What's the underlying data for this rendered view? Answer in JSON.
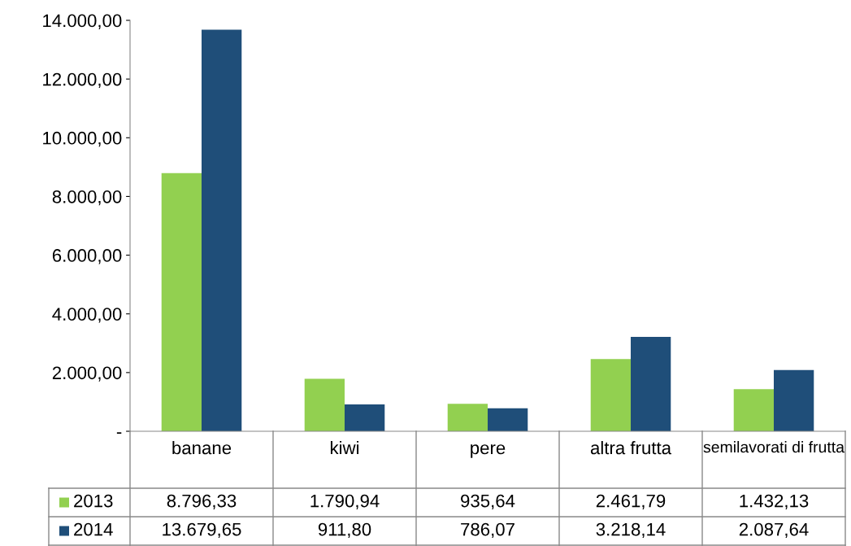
{
  "chart_data": {
    "type": "bar",
    "categories": [
      "banane",
      "kiwi",
      "pere",
      "altra frutta",
      "semilavorati di frutta"
    ],
    "series": [
      {
        "name": "2013",
        "color": "#92d050",
        "values": [
          8796.33,
          1790.94,
          935.64,
          2461.79,
          1432.13
        ],
        "value_labels": [
          "8.796,33",
          "1.790,94",
          "935,64",
          "2.461,79",
          "1.432,13"
        ]
      },
      {
        "name": "2014",
        "color": "#1f4e79",
        "values": [
          13679.65,
          911.8,
          786.07,
          3218.14,
          2087.64
        ],
        "value_labels": [
          "13.679,65",
          "911,80",
          "786,07",
          "3.218,14",
          "2.087,64"
        ]
      }
    ],
    "ylim": [
      0,
      14000
    ],
    "yticks": [
      {
        "value": 0,
        "label": "-"
      },
      {
        "value": 2000,
        "label": "2.000,00"
      },
      {
        "value": 4000,
        "label": "4.000,00"
      },
      {
        "value": 6000,
        "label": "6.000,00"
      },
      {
        "value": 8000,
        "label": "8.000,00"
      },
      {
        "value": 10000,
        "label": "10.000,00"
      },
      {
        "value": 12000,
        "label": "12.000,00"
      },
      {
        "value": 14000,
        "label": "14.000,00"
      }
    ],
    "grid": false,
    "legend": "bottom"
  }
}
